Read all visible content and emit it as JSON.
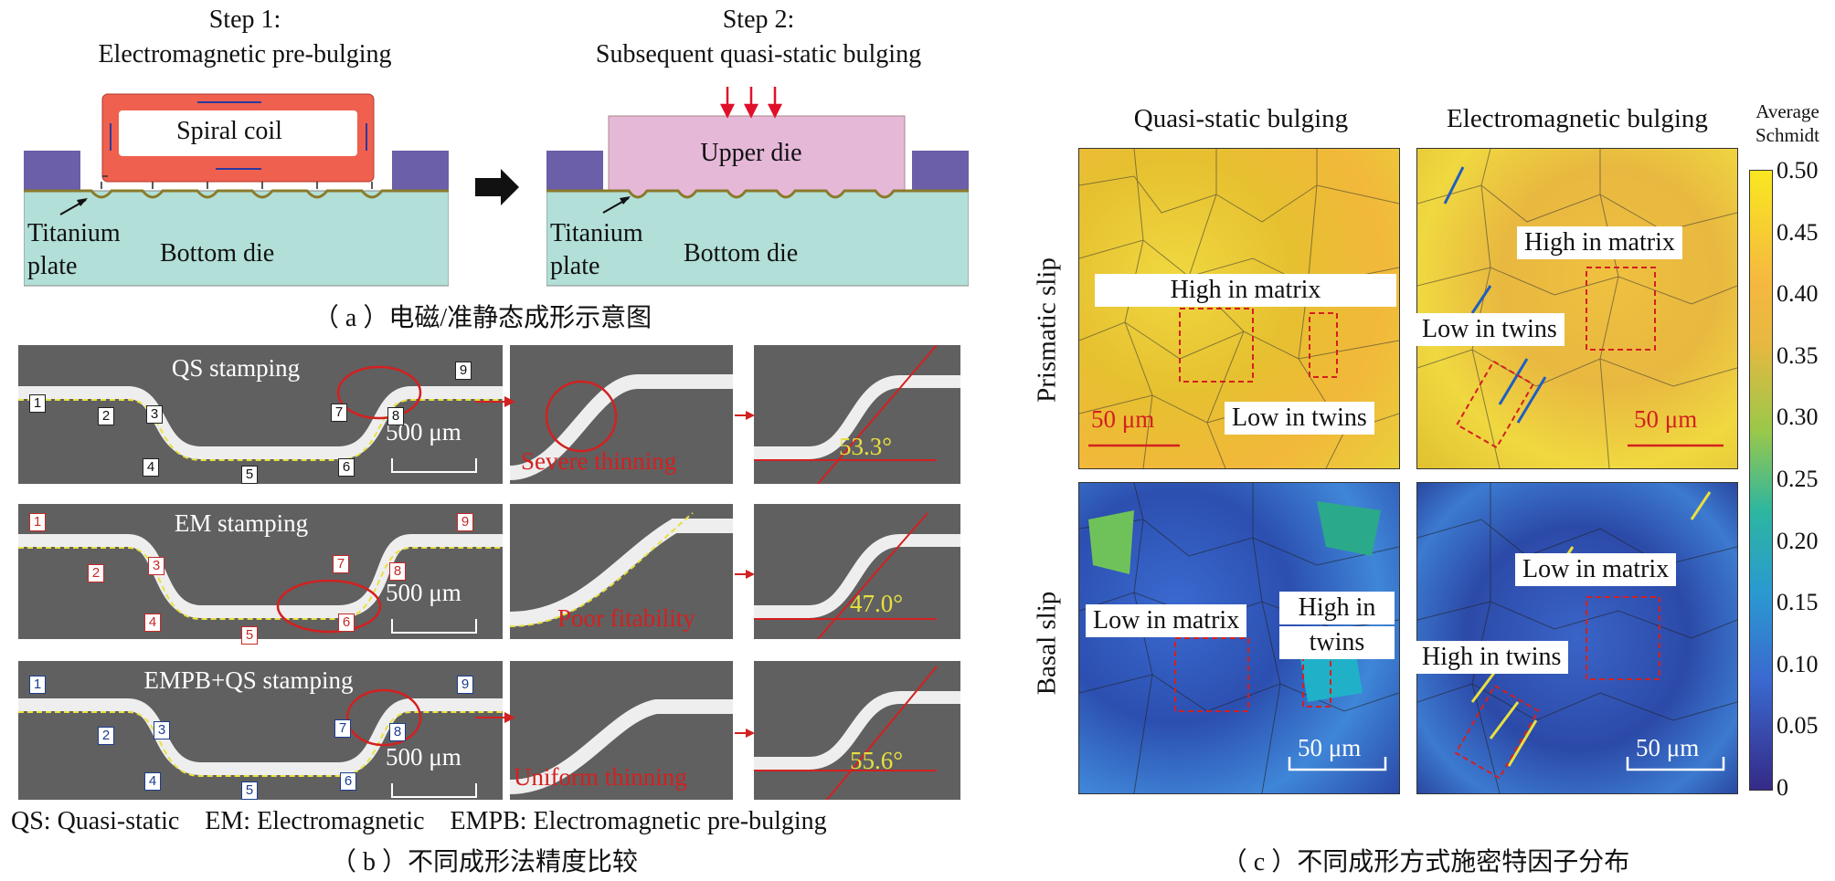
{
  "panel_a": {
    "step1_title": "Step 1:",
    "step1_subtitle": "Electromagnetic pre-bulging",
    "step2_title": "Step 2:",
    "step2_subtitle": "Subsequent quasi-static bulging",
    "coil_label": "Spiral coil",
    "upper_die_label": "Upper die",
    "titanium_label_1": "Titanium",
    "titanium_label_2": "plate",
    "bottom_die_label": "Bottom die",
    "caption": "（ a ）电磁/准静态成形示意图",
    "colors": {
      "die": "#b2dfd8",
      "clamp": "#6a5fa8",
      "coil": "#f0604e",
      "upper": "#e6b8d8",
      "arrow": "#e0102a"
    }
  },
  "panel_b": {
    "rows": [
      {
        "title": "QS stamping",
        "scale": "500 μm",
        "note": "Severe thinning",
        "angle": "53.3°",
        "marker_color": "black",
        "numbers": [
          "1",
          "2",
          "3",
          "4",
          "5",
          "6",
          "7",
          "8",
          "9"
        ]
      },
      {
        "title": "EM stamping",
        "scale": "500 μm",
        "note": "Poor fitability",
        "angle": "47.0°",
        "marker_color": "red",
        "numbers": [
          "1",
          "2",
          "3",
          "4",
          "5",
          "6",
          "7",
          "8",
          "9"
        ]
      },
      {
        "title": "EMPB+QS stamping",
        "scale": "500 μm",
        "note": "Uniform thinning",
        "angle": "55.6°",
        "marker_color": "blue",
        "numbers": [
          "1",
          "2",
          "3",
          "4",
          "5",
          "6",
          "7",
          "8",
          "9"
        ]
      }
    ],
    "legend": "QS: Quasi-static    EM: Electromagnetic    EMPB: Electromagnetic pre-bulging",
    "caption": "（ b ）不同成形法精度比较"
  },
  "panel_c": {
    "col_headers": [
      "Quasi-static bulging",
      "Electromagnetic bulging"
    ],
    "row_headers": [
      "Prismatic slip",
      "Basal slip"
    ],
    "annotations": {
      "tl": [
        "High in matrix",
        "Low in twins",
        "50 μm"
      ],
      "tr": [
        "High in matrix",
        "Low in twins",
        "50 μm"
      ],
      "bl": [
        "Low in matrix",
        "High in",
        "twins",
        "50 μm"
      ],
      "br": [
        "Low in matrix",
        "High in twins",
        "50 μm"
      ]
    },
    "colorbar_title_1": "Average",
    "colorbar_title_2": "Schmidt",
    "colorbar_ticks": [
      "0.50",
      "0.45",
      "0.40",
      "0.35",
      "0.30",
      "0.25",
      "0.20",
      "0.15",
      "0.10",
      "0.05",
      "0"
    ],
    "caption": "（ c ）不同成形方式施密特因子分布"
  }
}
